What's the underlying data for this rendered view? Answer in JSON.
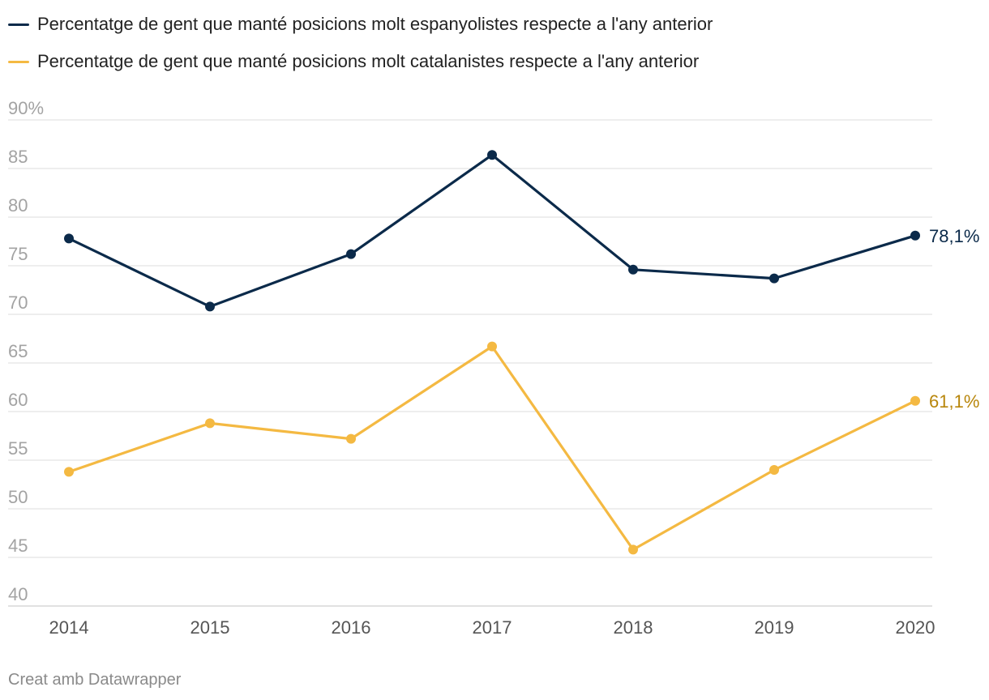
{
  "chart_data": {
    "type": "line",
    "title": "",
    "xlabel": "",
    "ylabel": "",
    "x": [
      "2014",
      "2015",
      "2016",
      "2017",
      "2018",
      "2019",
      "2020"
    ],
    "ylim": [
      40,
      90
    ],
    "y_ticks": [
      40,
      45,
      50,
      55,
      60,
      65,
      70,
      75,
      80,
      85,
      90
    ],
    "y_tick_labels": [
      "40",
      "45",
      "50",
      "55",
      "60",
      "65",
      "70",
      "75",
      "80",
      "85",
      "90%"
    ],
    "grid": true,
    "legend_position": "top-left",
    "series": [
      {
        "name": "Percentatge de gent que manté posicions molt espanyolistes respecte a l'any anterior",
        "color": "#0b2a4a",
        "values": [
          77.8,
          70.8,
          76.2,
          86.4,
          74.6,
          73.7,
          78.1
        ],
        "end_label": "78,1%",
        "end_label_color": "#0b2a4a"
      },
      {
        "name": "Percentatge de gent que manté posicions molt catalanistes respecte a l'any anterior",
        "color": "#f4b942",
        "values": [
          53.8,
          58.8,
          57.2,
          66.7,
          45.8,
          54.0,
          61.1
        ],
        "end_label": "61,1%",
        "end_label_color": "#b8860b"
      }
    ]
  },
  "footer": {
    "credit": "Creat amb Datawrapper"
  }
}
